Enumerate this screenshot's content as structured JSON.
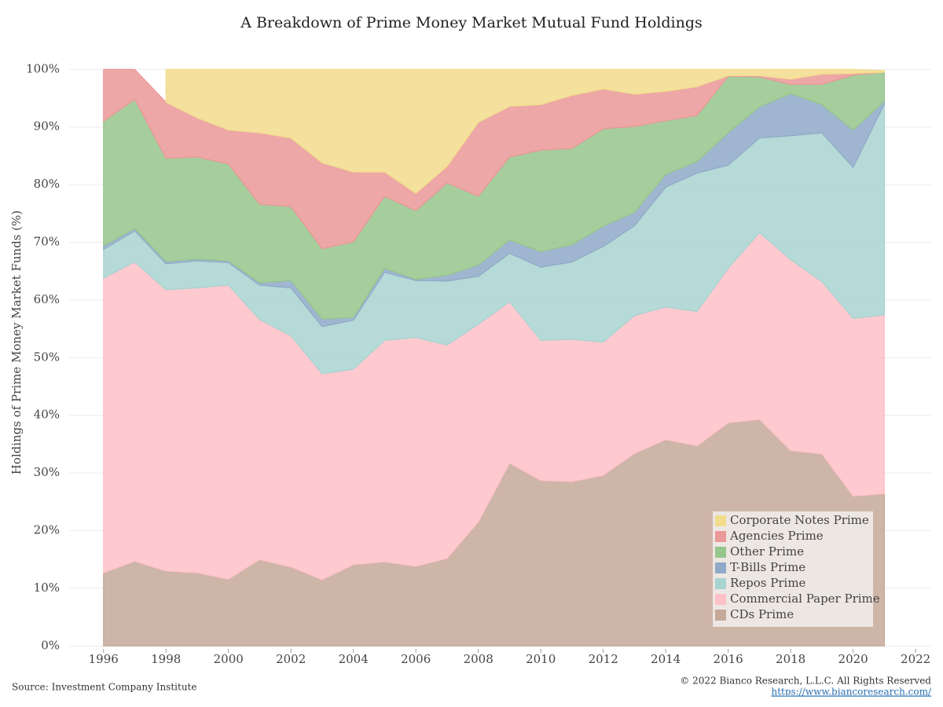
{
  "chart_data": {
    "type": "stacked_area",
    "title": "A Breakdown of Prime Money Market Mutual Fund Holdings",
    "y_label": "Holdings of Prime Money Market Funds (%)",
    "source": "Source: Investment Company Institute",
    "copyright": "© 2022 Bianco Research, L.L.C. All Rights Reserved",
    "url": "https://www.biancoresearch.com/",
    "x": [
      1996,
      1997,
      1998,
      1999,
      2000,
      2001,
      2002,
      2003,
      2004,
      2005,
      2006,
      2007,
      2008,
      2009,
      2010,
      2011,
      2012,
      2013,
      2014,
      2015,
      2016,
      2017,
      2018,
      2019,
      2020,
      2021
    ],
    "series": [
      {
        "name": "CDs Prime",
        "color": "#c4a898",
        "values": [
          12.7,
          14.7,
          13.0,
          12.7,
          11.6,
          15.0,
          13.7,
          11.5,
          14.1,
          14.6,
          13.8,
          15.2,
          21.5,
          31.7,
          28.7,
          28.5,
          29.6,
          33.4,
          35.8,
          34.7,
          38.7,
          39.3,
          33.9,
          33.3,
          26.0,
          26.4
        ]
      },
      {
        "name": "Commercial Paper Prime",
        "color": "#ffc0c8",
        "values": [
          51.1,
          51.9,
          48.8,
          49.4,
          51.0,
          41.6,
          40.1,
          35.7,
          33.9,
          38.4,
          39.7,
          37.0,
          34.3,
          28.0,
          24.3,
          24.7,
          23.1,
          23.9,
          23.0,
          23.3,
          26.8,
          32.4,
          33.1,
          29.9,
          30.8,
          31.0
        ]
      },
      {
        "name": "Repos Prime",
        "color": "#a8d4d0",
        "values": [
          5.0,
          5.4,
          4.5,
          4.7,
          3.9,
          6.0,
          8.3,
          8.2,
          8.5,
          11.8,
          9.9,
          11.1,
          8.3,
          8.4,
          12.7,
          13.4,
          16.6,
          15.6,
          20.8,
          24.0,
          17.9,
          16.4,
          21.5,
          25.8,
          26.2,
          36.6
        ]
      },
      {
        "name": "T-Bills Prime",
        "color": "#8fa9c8",
        "values": [
          0.6,
          0.4,
          0.4,
          0.3,
          0.3,
          0.4,
          1.3,
          1.3,
          0.5,
          0.7,
          0.2,
          1.0,
          2.0,
          2.3,
          2.7,
          3.0,
          3.5,
          2.3,
          2.2,
          2.0,
          5.6,
          5.4,
          7.3,
          4.9,
          6.5,
          0.5
        ]
      },
      {
        "name": "Other Prime",
        "color": "#96c68c",
        "values": [
          21.6,
          22.4,
          17.9,
          17.7,
          16.8,
          13.6,
          12.8,
          12.2,
          13.1,
          12.5,
          11.9,
          16.0,
          11.9,
          14.4,
          17.6,
          16.7,
          16.9,
          14.9,
          9.3,
          8.0,
          9.8,
          5.2,
          1.6,
          3.5,
          9.5,
          5.0
        ]
      },
      {
        "name": "Agencies Prime",
        "color": "#ea9898",
        "values": [
          9.0,
          5.2,
          9.7,
          6.8,
          5.9,
          12.4,
          11.9,
          14.9,
          12.1,
          4.2,
          3.0,
          2.9,
          12.8,
          8.8,
          7.9,
          9.2,
          6.9,
          5.6,
          5.1,
          5.0,
          0.1,
          0.2,
          0.9,
          1.8,
          0.3,
          0.0
        ]
      },
      {
        "name": "Corporate Notes Prime",
        "color": "#f2dc8c",
        "values": [
          null,
          null,
          5.7,
          8.4,
          10.5,
          11.0,
          11.9,
          16.2,
          17.8,
          17.8,
          21.5,
          16.8,
          9.2,
          6.4,
          6.1,
          4.5,
          3.4,
          4.3,
          3.8,
          3.0,
          1.1,
          1.1,
          1.7,
          0.8,
          0.7,
          0.3
        ]
      }
    ],
    "xlim": [
      1994.9,
      2022.5
    ],
    "xticks": [
      1996,
      1998,
      2000,
      2002,
      2004,
      2006,
      2008,
      2010,
      2012,
      2014,
      2016,
      2018,
      2020,
      2022
    ],
    "ylim": [
      -0.5,
      102.5
    ],
    "yticks": [
      {
        "value": 0,
        "label": "0%"
      },
      {
        "value": 10,
        "label": "10%"
      },
      {
        "value": 20,
        "label": "20%"
      },
      {
        "value": 30,
        "label": "30%"
      },
      {
        "value": 40,
        "label": "40%"
      },
      {
        "value": 50,
        "label": "50%"
      },
      {
        "value": 60,
        "label": "60%"
      },
      {
        "value": 70,
        "label": "70%"
      },
      {
        "value": 80,
        "label": "80%"
      },
      {
        "value": 90,
        "label": "90%"
      },
      {
        "value": 100,
        "label": "100%"
      }
    ],
    "grid": true,
    "legend": "lower right"
  }
}
